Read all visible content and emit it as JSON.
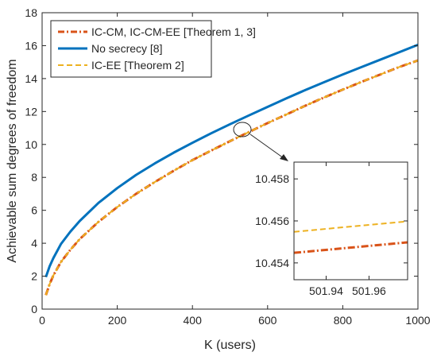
{
  "chart_data": [
    {
      "type": "line",
      "title": "",
      "xlabel": "K (users)",
      "ylabel": "Achievable sum degrees of freedom",
      "xlim": [
        0,
        1000
      ],
      "ylim": [
        0,
        18
      ],
      "xticks": [
        0,
        200,
        400,
        600,
        800,
        1000
      ],
      "yticks": [
        0,
        2,
        4,
        6,
        8,
        10,
        12,
        14,
        16,
        18
      ],
      "grid": false,
      "legend_position": "top-left",
      "series": [
        {
          "name": "IC-CM, IC-CM-EE [Theorem 1, 3]",
          "color": "#d95319",
          "style": "dash-dot",
          "x": [
            10,
            20,
            30,
            50,
            75,
            100,
            150,
            200,
            250,
            300,
            350,
            400,
            450,
            500,
            550,
            600,
            650,
            700,
            750,
            800,
            850,
            900,
            950,
            1000
          ],
          "y": [
            0.85,
            1.52,
            2.05,
            2.86,
            3.6,
            4.25,
            5.3,
            6.2,
            7.0,
            7.72,
            8.4,
            9.05,
            9.63,
            10.2,
            10.75,
            11.3,
            11.82,
            12.35,
            12.85,
            13.33,
            13.8,
            14.25,
            14.7,
            15.1
          ]
        },
        {
          "name": "No secrecy [8]",
          "color": "#0072bd",
          "style": "solid",
          "x": [
            10,
            20,
            30,
            50,
            75,
            100,
            150,
            200,
            250,
            300,
            350,
            400,
            450,
            500,
            550,
            600,
            650,
            700,
            750,
            800,
            850,
            900,
            950,
            1000
          ],
          "y": [
            1.95,
            2.6,
            3.1,
            3.95,
            4.7,
            5.35,
            6.45,
            7.35,
            8.15,
            8.85,
            9.5,
            10.1,
            10.68,
            11.23,
            11.76,
            12.28,
            12.8,
            13.3,
            13.78,
            14.25,
            14.7,
            15.15,
            15.6,
            16.05
          ]
        },
        {
          "name": "IC-EE [Theorem 2]",
          "color": "#edb120",
          "style": "dashed",
          "x": [
            10,
            20,
            30,
            50,
            75,
            100,
            150,
            200,
            250,
            300,
            350,
            400,
            450,
            500,
            550,
            600,
            650,
            700,
            750,
            800,
            850,
            900,
            950,
            1000
          ],
          "y": [
            0.85,
            1.52,
            2.05,
            2.86,
            3.6,
            4.25,
            5.3,
            6.2,
            7.0,
            7.72,
            8.4,
            9.05,
            9.63,
            10.2,
            10.75,
            11.3,
            11.82,
            12.35,
            12.85,
            13.33,
            13.8,
            14.25,
            14.7,
            15.1
          ]
        }
      ]
    },
    {
      "type": "line",
      "title": "",
      "xlabel": "",
      "ylabel": "",
      "xlim": [
        501.925,
        501.978
      ],
      "ylim": [
        10.4532,
        10.4588
      ],
      "xticks": [
        501.94,
        501.96
      ],
      "xtick_labels": [
        "501.94",
        "501.96"
      ],
      "yticks": [
        10.454,
        10.456,
        10.458
      ],
      "ytick_labels": [
        "10.454",
        "10.456",
        "10.458"
      ],
      "grid": false,
      "series": [
        {
          "name": "IC-CM, IC-CM-EE [Theorem 1, 3]",
          "color": "#d95319",
          "style": "dash-dot",
          "x": [
            501.925,
            501.978
          ],
          "y": [
            10.45448,
            10.45498
          ]
        },
        {
          "name": "IC-EE [Theorem 2]",
          "color": "#edb120",
          "style": "dashed",
          "x": [
            501.925,
            501.978
          ],
          "y": [
            10.45548,
            10.45598
          ]
        }
      ]
    }
  ]
}
